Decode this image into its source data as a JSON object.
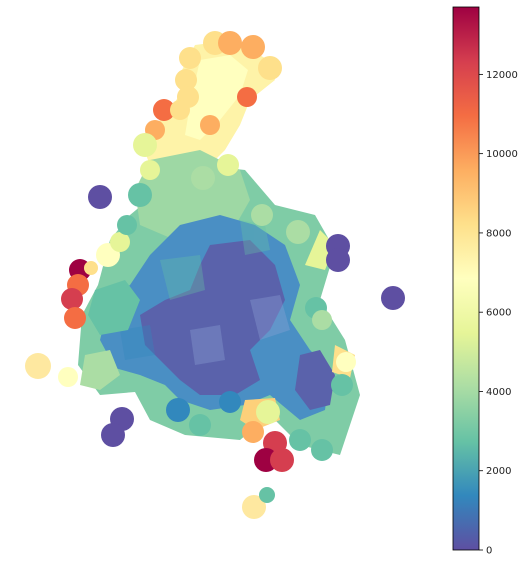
{
  "colorbar": {
    "min": 0,
    "max": 13700,
    "ticks": [
      "0",
      "2000",
      "4000",
      "6000",
      "8000",
      "10000",
      "12000"
    ],
    "tick_values": [
      0,
      2000,
      4000,
      6000,
      8000,
      10000,
      12000
    ],
    "colormap": "Spectral_r",
    "stops": [
      "#5e4fa2",
      "#3288bd",
      "#66c2a5",
      "#abdda4",
      "#e6f598",
      "#ffffbf",
      "#fee08b",
      "#fdae61",
      "#f46d43",
      "#d53e4f",
      "#9e0142"
    ]
  }
}
